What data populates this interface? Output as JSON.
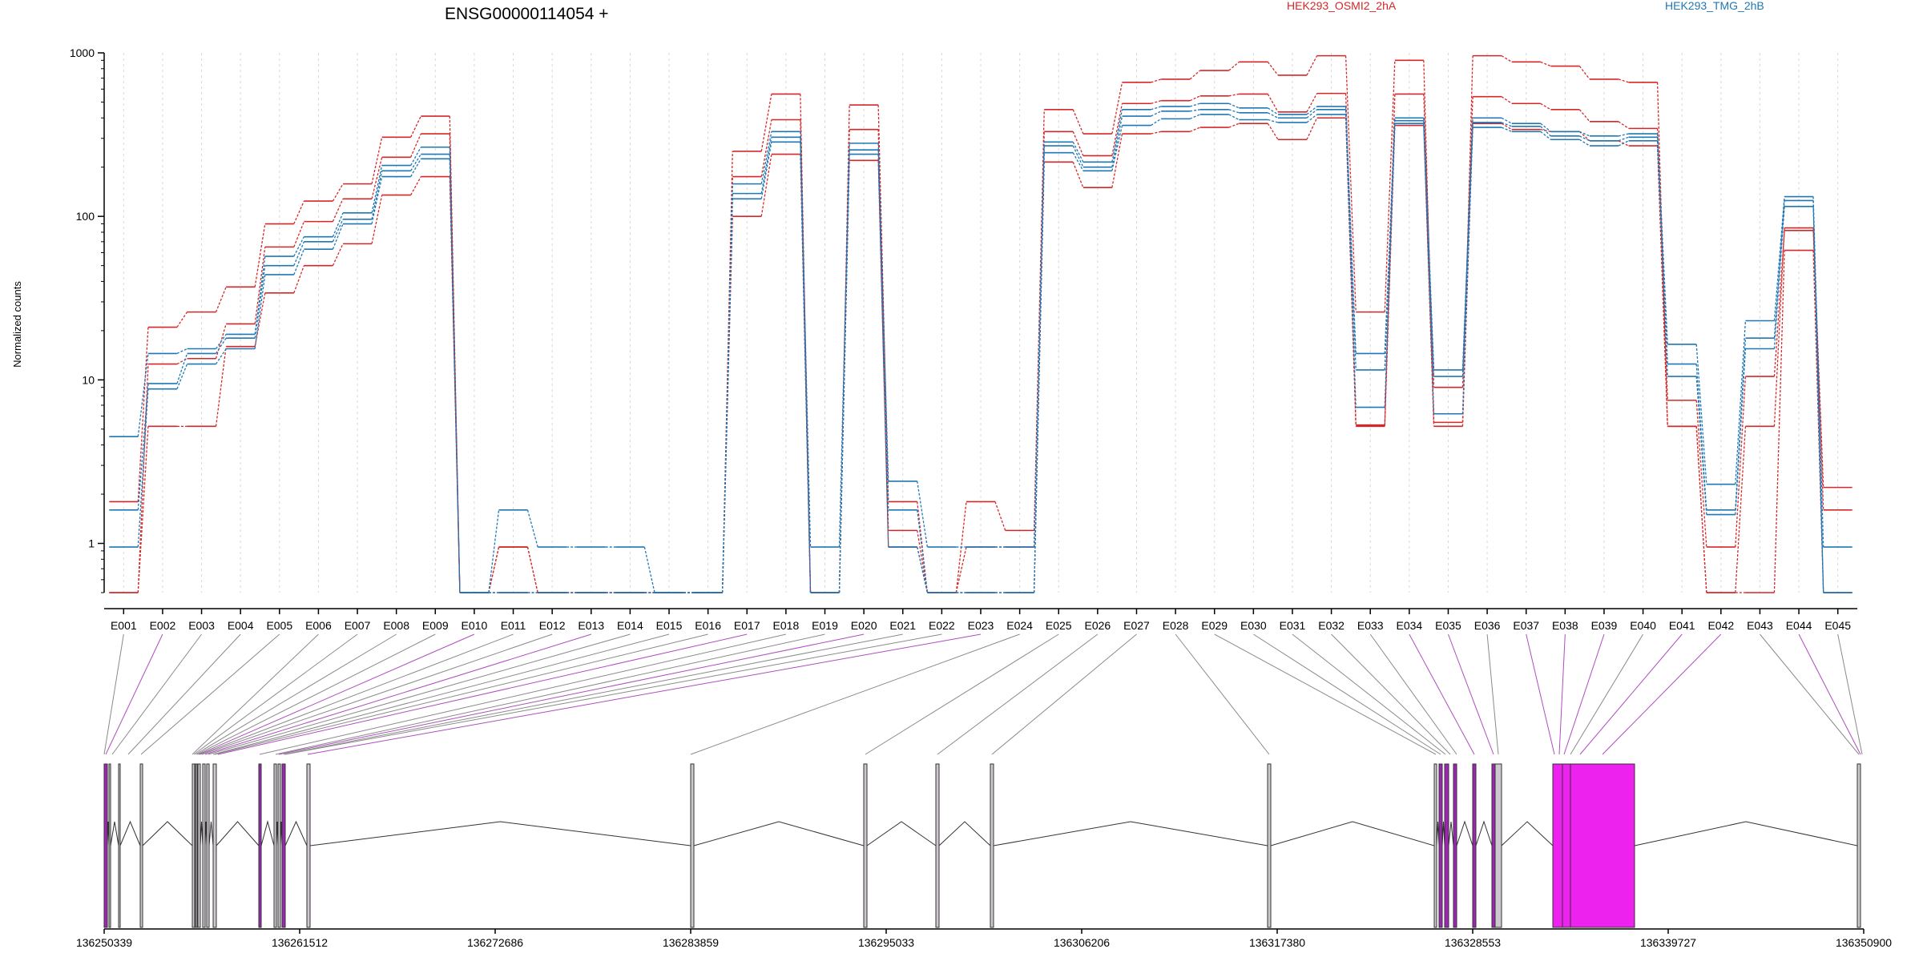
{
  "chart_data": {
    "type": "line",
    "title": "ENSG00000114054 +",
    "ylabel": "Normalized counts",
    "yscale": "log",
    "ylim": [
      0.5,
      1000
    ],
    "yticks": [
      1,
      10,
      100,
      1000
    ],
    "ytick_labels": [
      "1",
      "10",
      "100",
      "1000"
    ],
    "legend": {
      "placement": "top",
      "entries": [
        {
          "name": "HEK293_OSMI2_2hA",
          "color": "#d62728"
        },
        {
          "name": "HEK293_TMG_2hB",
          "color": "#1f77b4"
        }
      ]
    },
    "categories": [
      "E001",
      "E002",
      "E003",
      "E004",
      "E005",
      "E006",
      "E007",
      "E008",
      "E009",
      "E010",
      "E011",
      "E012",
      "E013",
      "E014",
      "E015",
      "E016",
      "E017",
      "E018",
      "E019",
      "E020",
      "E021",
      "E022",
      "E023",
      "E024",
      "E025",
      "E026",
      "E027",
      "E028",
      "E029",
      "E030",
      "E031",
      "E032",
      "E033",
      "E034",
      "E035",
      "E036",
      "E037",
      "E038",
      "E039",
      "E040",
      "E041",
      "E042",
      "E043",
      "E044",
      "E045"
    ],
    "series": [
      {
        "group": "HEK293_OSMI2_2hA",
        "color": "#d62728",
        "values": [
          1.8,
          21,
          26,
          37,
          90,
          124,
          158,
          305,
          410,
          0.5,
          0.5,
          0.5,
          0.5,
          0.5,
          0.5,
          0.5,
          250,
          560,
          0.5,
          480,
          1.8,
          0.5,
          1.8,
          1.2,
          450,
          320,
          660,
          690,
          780,
          880,
          730,
          960,
          26,
          900,
          5.5,
          960,
          880,
          830,
          690,
          660,
          5.2,
          0.5,
          5.2,
          85,
          2.2
        ]
      },
      {
        "group": "HEK293_OSMI2_2hA",
        "color": "#d62728",
        "values": [
          0.5,
          12.5,
          13.5,
          22,
          65,
          93,
          128,
          230,
          320,
          0.5,
          0.95,
          0.5,
          0.5,
          0.5,
          0.5,
          0.5,
          175,
          390,
          0.5,
          340,
          1.2,
          0.5,
          0.95,
          0.95,
          330,
          235,
          490,
          510,
          545,
          560,
          435,
          565,
          5.3,
          560,
          9.0,
          540,
          490,
          450,
          380,
          345,
          7.5,
          0.95,
          10.5,
          82,
          1.6
        ]
      },
      {
        "group": "HEK293_OSMI2_2hA",
        "color": "#d62728",
        "values": [
          0.5,
          5.2,
          5.2,
          16,
          34,
          50,
          68,
          135,
          175,
          0.5,
          0.95,
          0.5,
          0.5,
          0.5,
          0.5,
          0.5,
          100,
          240,
          0.5,
          220,
          0.95,
          0.5,
          0.5,
          0.5,
          215,
          150,
          320,
          330,
          350,
          370,
          295,
          400,
          5.2,
          360,
          5.2,
          370,
          340,
          330,
          290,
          270,
          5.2,
          0.5,
          0.5,
          62,
          0.5
        ]
      },
      {
        "group": "HEK293_TMG_2hB",
        "color": "#1f77b4",
        "values": [
          4.5,
          14.5,
          15.5,
          19,
          57,
          75,
          105,
          205,
          265,
          0.5,
          1.6,
          0.95,
          0.95,
          0.95,
          0.5,
          0.5,
          158,
          330,
          0.95,
          280,
          2.4,
          0.95,
          0.95,
          0.95,
          285,
          215,
          450,
          470,
          490,
          460,
          420,
          470,
          14.5,
          400,
          11.5,
          400,
          370,
          330,
          310,
          320,
          16.5,
          2.3,
          23,
          132,
          0.95
        ]
      },
      {
        "group": "HEK293_TMG_2hB",
        "color": "#1f77b4",
        "values": [
          1.6,
          9.5,
          14.5,
          18,
          50,
          70,
          96,
          190,
          240,
          0.5,
          0.5,
          0.5,
          0.5,
          0.5,
          0.5,
          0.5,
          138,
          305,
          0.5,
          255,
          1.6,
          0.5,
          0.5,
          0.5,
          270,
          200,
          410,
          440,
          450,
          430,
          400,
          450,
          11.5,
          385,
          10.5,
          375,
          355,
          310,
          290,
          305,
          12.5,
          1.6,
          18,
          125,
          0.5
        ]
      },
      {
        "group": "HEK293_TMG_2hB",
        "color": "#1f77b4",
        "values": [
          0.95,
          8.8,
          12.5,
          15.5,
          44,
          63,
          90,
          175,
          225,
          0.5,
          0.5,
          0.5,
          0.5,
          0.5,
          0.5,
          0.5,
          128,
          285,
          0.5,
          240,
          0.95,
          0.5,
          0.5,
          0.5,
          245,
          190,
          360,
          395,
          420,
          390,
          375,
          420,
          6.8,
          370,
          6.2,
          350,
          330,
          295,
          270,
          290,
          10.5,
          1.5,
          15.5,
          115,
          0.5
        ]
      }
    ],
    "gene_model": {
      "coordinate_ticks": [
        136250339,
        136261512,
        136272686,
        136283859,
        136295033,
        136306206,
        136317380,
        136328553,
        136339727,
        136350900
      ],
      "coordinate_tick_labels": [
        "136250339",
        "136261512",
        "136272686",
        "136283859",
        "136295033",
        "136306206",
        "136317380",
        "136328553",
        "136339727",
        "136350900"
      ],
      "exon_type_colors": {
        "constitutive": "#888888",
        "alternative": "#9c27b0",
        "highlighted": "#ee22ee"
      }
    }
  }
}
